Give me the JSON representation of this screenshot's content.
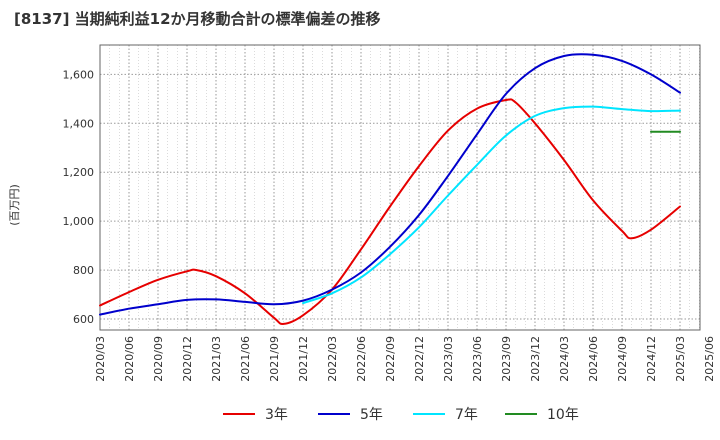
{
  "chart_data": {
    "type": "line",
    "title": "[8137]  当期純利益12か月移動合計の標準偏差の推移",
    "ylabel": "(百万円)",
    "xlabel": "",
    "ylim": [
      555,
      1720
    ],
    "yticks": [
      600,
      800,
      1000,
      1200,
      1400,
      1600
    ],
    "ytick_labels": [
      "600",
      "800",
      "1,000",
      "1,200",
      "1,400",
      "1,600"
    ],
    "xticks": [
      "2020/03",
      "2020/06",
      "2020/09",
      "2020/12",
      "2021/03",
      "2021/06",
      "2021/09",
      "2021/12",
      "2022/03",
      "2022/06",
      "2022/09",
      "2022/12",
      "2023/03",
      "2023/06",
      "2023/09",
      "2023/12",
      "2024/03",
      "2024/06",
      "2024/09",
      "2024/12",
      "2025/03",
      "2025/06"
    ],
    "grid": true,
    "legend_position": "bottom",
    "series": [
      {
        "name": "3年",
        "color": "#e60000",
        "x": [
          "2020/03",
          "2020/06",
          "2020/09",
          "2020/12",
          "2021/01",
          "2021/03",
          "2021/06",
          "2021/09",
          "2021/10",
          "2021/12",
          "2022/03",
          "2022/06",
          "2022/09",
          "2022/12",
          "2023/03",
          "2023/06",
          "2023/09",
          "2023/10",
          "2023/12",
          "2024/03",
          "2024/06",
          "2024/09",
          "2024/10",
          "2024/12",
          "2025/03"
        ],
        "y": [
          655,
          710,
          760,
          795,
          800,
          775,
          705,
          605,
          580,
          615,
          720,
          885,
          1060,
          1225,
          1370,
          1460,
          1495,
          1485,
          1400,
          1250,
          1085,
          960,
          930,
          965,
          1060
        ]
      },
      {
        "name": "5年",
        "color": "#0000cc",
        "x": [
          "2020/03",
          "2020/06",
          "2020/09",
          "2020/12",
          "2021/03",
          "2021/06",
          "2021/09",
          "2021/12",
          "2022/03",
          "2022/06",
          "2022/09",
          "2022/12",
          "2023/03",
          "2023/06",
          "2023/09",
          "2023/12",
          "2024/03",
          "2024/06",
          "2024/09",
          "2024/12",
          "2025/03"
        ],
        "y": [
          618,
          642,
          660,
          678,
          680,
          670,
          660,
          675,
          720,
          790,
          895,
          1025,
          1185,
          1355,
          1520,
          1625,
          1675,
          1680,
          1655,
          1600,
          1525
        ]
      },
      {
        "name": "7年",
        "color": "#00e5ff",
        "x": [
          "2021/12",
          "2022/03",
          "2022/06",
          "2022/09",
          "2022/12",
          "2023/03",
          "2023/06",
          "2023/09",
          "2023/12",
          "2024/03",
          "2024/06",
          "2024/09",
          "2024/12",
          "2025/03"
        ],
        "y": [
          665,
          705,
          770,
          865,
          975,
          1105,
          1230,
          1350,
          1430,
          1462,
          1468,
          1458,
          1450,
          1452
        ]
      },
      {
        "name": "10年",
        "color": "#228b22",
        "x": [
          "2024/12",
          "2025/03"
        ],
        "y": [
          1365,
          1365
        ]
      }
    ]
  }
}
